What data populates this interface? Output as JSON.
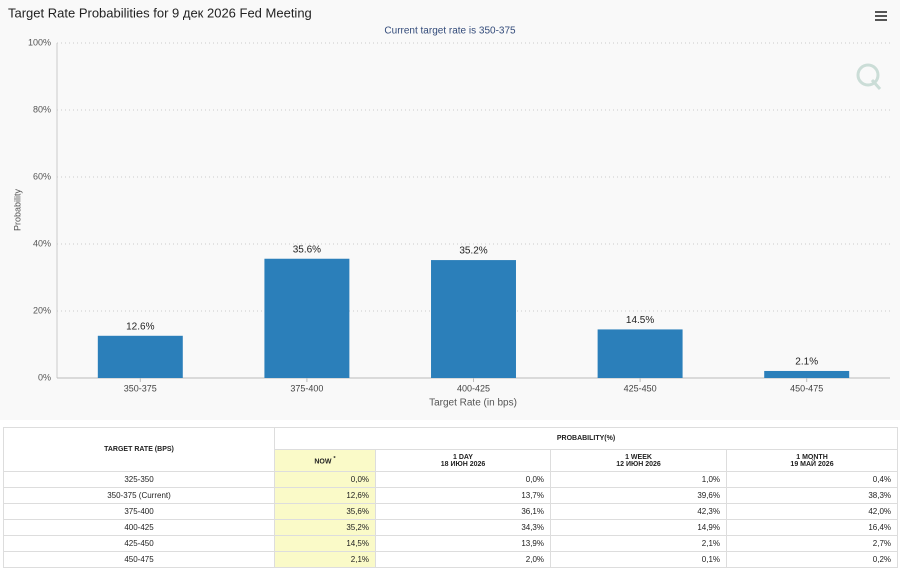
{
  "chart_data": {
    "type": "bar",
    "title": "Target Rate Probabilities for 9 дек 2026 Fed Meeting",
    "subtitle": "Current target rate is 350-375",
    "x_label": "Target Rate (in bps)",
    "y_label": "Probability",
    "categories": [
      "350-375",
      "375-400",
      "400-425",
      "425-450",
      "450-475"
    ],
    "values": [
      12.6,
      35.6,
      35.2,
      14.5,
      2.1
    ],
    "value_labels": [
      "12.6%",
      "35.6%",
      "35.2%",
      "14.5%",
      "2.1%"
    ],
    "color": "#2b7fba",
    "ylim": [
      0,
      100
    ],
    "yticks": [
      {
        "value": 0,
        "label": "0%"
      },
      {
        "value": 20,
        "label": "20%"
      },
      {
        "value": 40,
        "label": "40%"
      },
      {
        "value": 60,
        "label": "60%"
      },
      {
        "value": 80,
        "label": "80%"
      },
      {
        "value": 100,
        "label": "100%"
      }
    ],
    "grid": true
  },
  "table": {
    "rate_header": "TARGET RATE (BPS)",
    "probability_header": "PROBABILITY(%)",
    "columns": [
      {
        "name": "NOW",
        "mark": "*"
      },
      {
        "name": "1 DAY",
        "date": "18 ИЮН 2026"
      },
      {
        "name": "1 WEEK",
        "date": "12 ИЮН 2026"
      },
      {
        "name": "1 MONTH",
        "date": "19 МАЙ 2026"
      }
    ],
    "rows": [
      [
        "325-350",
        "0,0%",
        "0,0%",
        "1,0%",
        "0,4%"
      ],
      [
        "350-375 (Current)",
        "12,6%",
        "13,7%",
        "39,6%",
        "38,3%"
      ],
      [
        "375-400",
        "35,6%",
        "36,1%",
        "42,3%",
        "42,0%"
      ],
      [
        "400-425",
        "35,2%",
        "34,3%",
        "14,9%",
        "16,4%"
      ],
      [
        "425-450",
        "14,5%",
        "13,9%",
        "2,1%",
        "2,7%"
      ],
      [
        "450-475",
        "2,1%",
        "2,0%",
        "0,1%",
        "0,2%"
      ]
    ]
  }
}
